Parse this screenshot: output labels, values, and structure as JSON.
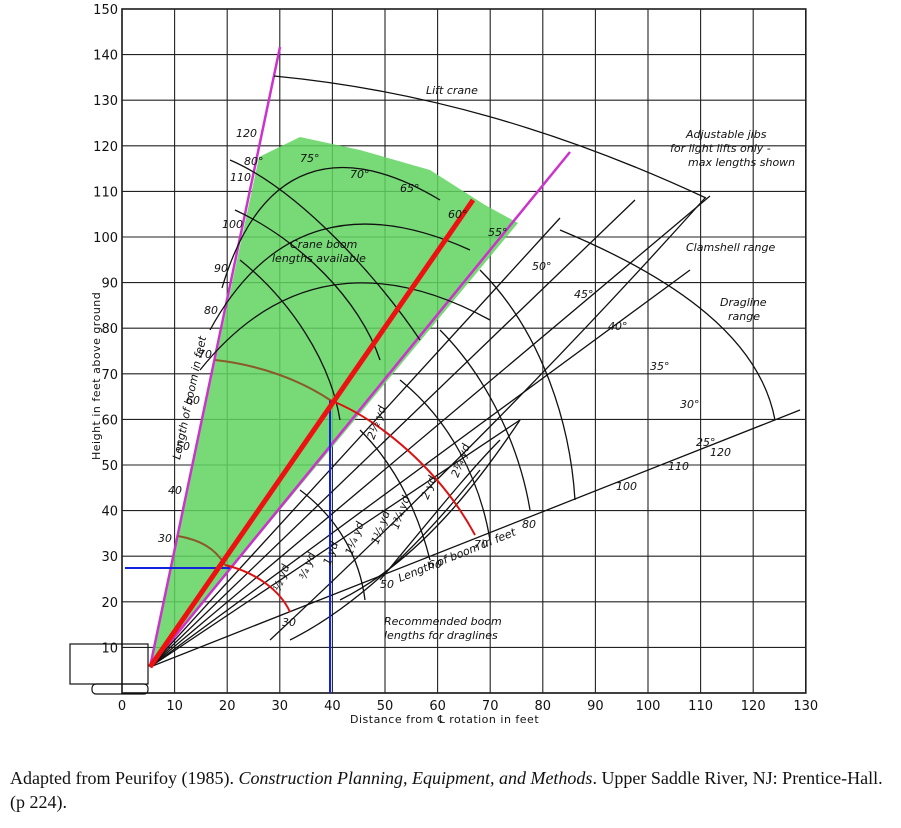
{
  "axes": {
    "x_title": "Distance from ℄ rotation in feet",
    "y_title": "Height in feet above ground",
    "x_ticks": [
      "0",
      "10",
      "20",
      "30",
      "40",
      "50",
      "60",
      "70",
      "80",
      "90",
      "100",
      "110",
      "120",
      "130"
    ],
    "y_ticks": [
      "10",
      "20",
      "30",
      "40",
      "50",
      "60",
      "70",
      "80",
      "90",
      "100",
      "110",
      "120",
      "130",
      "140",
      "150"
    ]
  },
  "labels": {
    "lift_crane": "Lift crane",
    "jibs": [
      "Adjustable jibs",
      "for light lifts only -",
      "max lengths shown"
    ],
    "clamshell": "Clamshell range",
    "dragline": [
      "Dragline",
      "range"
    ],
    "crane_boom": [
      "Crane boom",
      "lengths available"
    ],
    "length_of_boom_left": "Length of boom in feet",
    "length_of_boom_bottom": "Length of boom in feet",
    "recommended": [
      "Recommended boom",
      "lengths for draglines"
    ]
  },
  "boom_lengths_left": [
    "30",
    "40",
    "50",
    "60",
    "70",
    "80",
    "90",
    "100",
    "110",
    "120"
  ],
  "boom_lengths_bottom": [
    "30",
    "50",
    "60",
    "70",
    "80",
    "100",
    "110",
    "120"
  ],
  "angle_labels": [
    "80°",
    "75°",
    "70°",
    "65°",
    "60°",
    "55°",
    "50°",
    "45°",
    "40°",
    "35°",
    "30°",
    "25°"
  ],
  "bucket_labels": [
    "½ yd",
    "¾ yd",
    "1 yd",
    "1¼ yd",
    "1½ yd",
    "1¾ yd",
    "2 yd",
    "2¼ yd",
    "2½ yd"
  ],
  "colors": {
    "green_zone": "#5fd35f",
    "red_boom": "#ee1111",
    "magenta": "#cc33cc",
    "blue": "#1122dd",
    "red_arc": "#dd1111",
    "brown": "#8a5a2b"
  },
  "caption": {
    "prefix": "Adapted from Peurifoy (1985). ",
    "title": "Construction Planning, Equipment, and Methods",
    "suffix": ". Upper Saddle River, NJ: Prentice-Hall. (p 224)."
  }
}
